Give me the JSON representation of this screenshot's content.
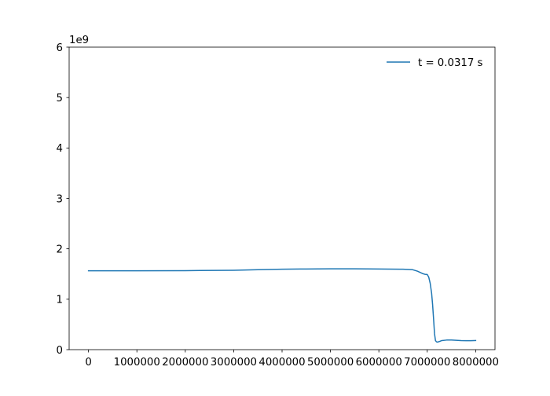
{
  "chart_data": {
    "type": "line",
    "title": "",
    "xlabel": "",
    "ylabel": "",
    "xlim": [
      -400000,
      8400000
    ],
    "ylim": [
      0,
      6
    ],
    "y_offset_label": "1e9",
    "x_ticks": [
      0,
      1000000,
      2000000,
      3000000,
      4000000,
      5000000,
      6000000,
      7000000,
      8000000
    ],
    "x_tick_labels": [
      "0",
      "1000000",
      "2000000",
      "3000000",
      "4000000",
      "5000000",
      "6000000",
      "7000000",
      "8000000"
    ],
    "y_ticks": [
      0,
      1,
      2,
      3,
      4,
      5,
      6
    ],
    "y_tick_labels": [
      "0",
      "1",
      "2",
      "3",
      "4",
      "5",
      "6"
    ],
    "grid": false,
    "legend_position": "top-right",
    "series": [
      {
        "name": "t = 0.0317 s",
        "color": "#1f77b4",
        "x": [
          0,
          1000000,
          2000000,
          3000000,
          3500000,
          4000000,
          4500000,
          5000000,
          5500000,
          6000000,
          6500000,
          6700000,
          6800000,
          6900000,
          6950000,
          7000000,
          7030000,
          7060000,
          7090000,
          7110000,
          7130000,
          7150000,
          7170000,
          7190000,
          7210000,
          7230000,
          7260000,
          7300000,
          7400000,
          7500000,
          7600000,
          7700000,
          7800000,
          7900000,
          8000000
        ],
        "values": [
          1.565,
          1.565,
          1.567,
          1.575,
          1.585,
          1.595,
          1.6,
          1.603,
          1.603,
          1.6,
          1.595,
          1.585,
          1.555,
          1.51,
          1.495,
          1.49,
          1.44,
          1.32,
          1.12,
          0.9,
          0.62,
          0.32,
          0.18,
          0.155,
          0.15,
          0.155,
          0.165,
          0.18,
          0.19,
          0.19,
          0.185,
          0.18,
          0.178,
          0.177,
          0.18
        ]
      }
    ]
  }
}
